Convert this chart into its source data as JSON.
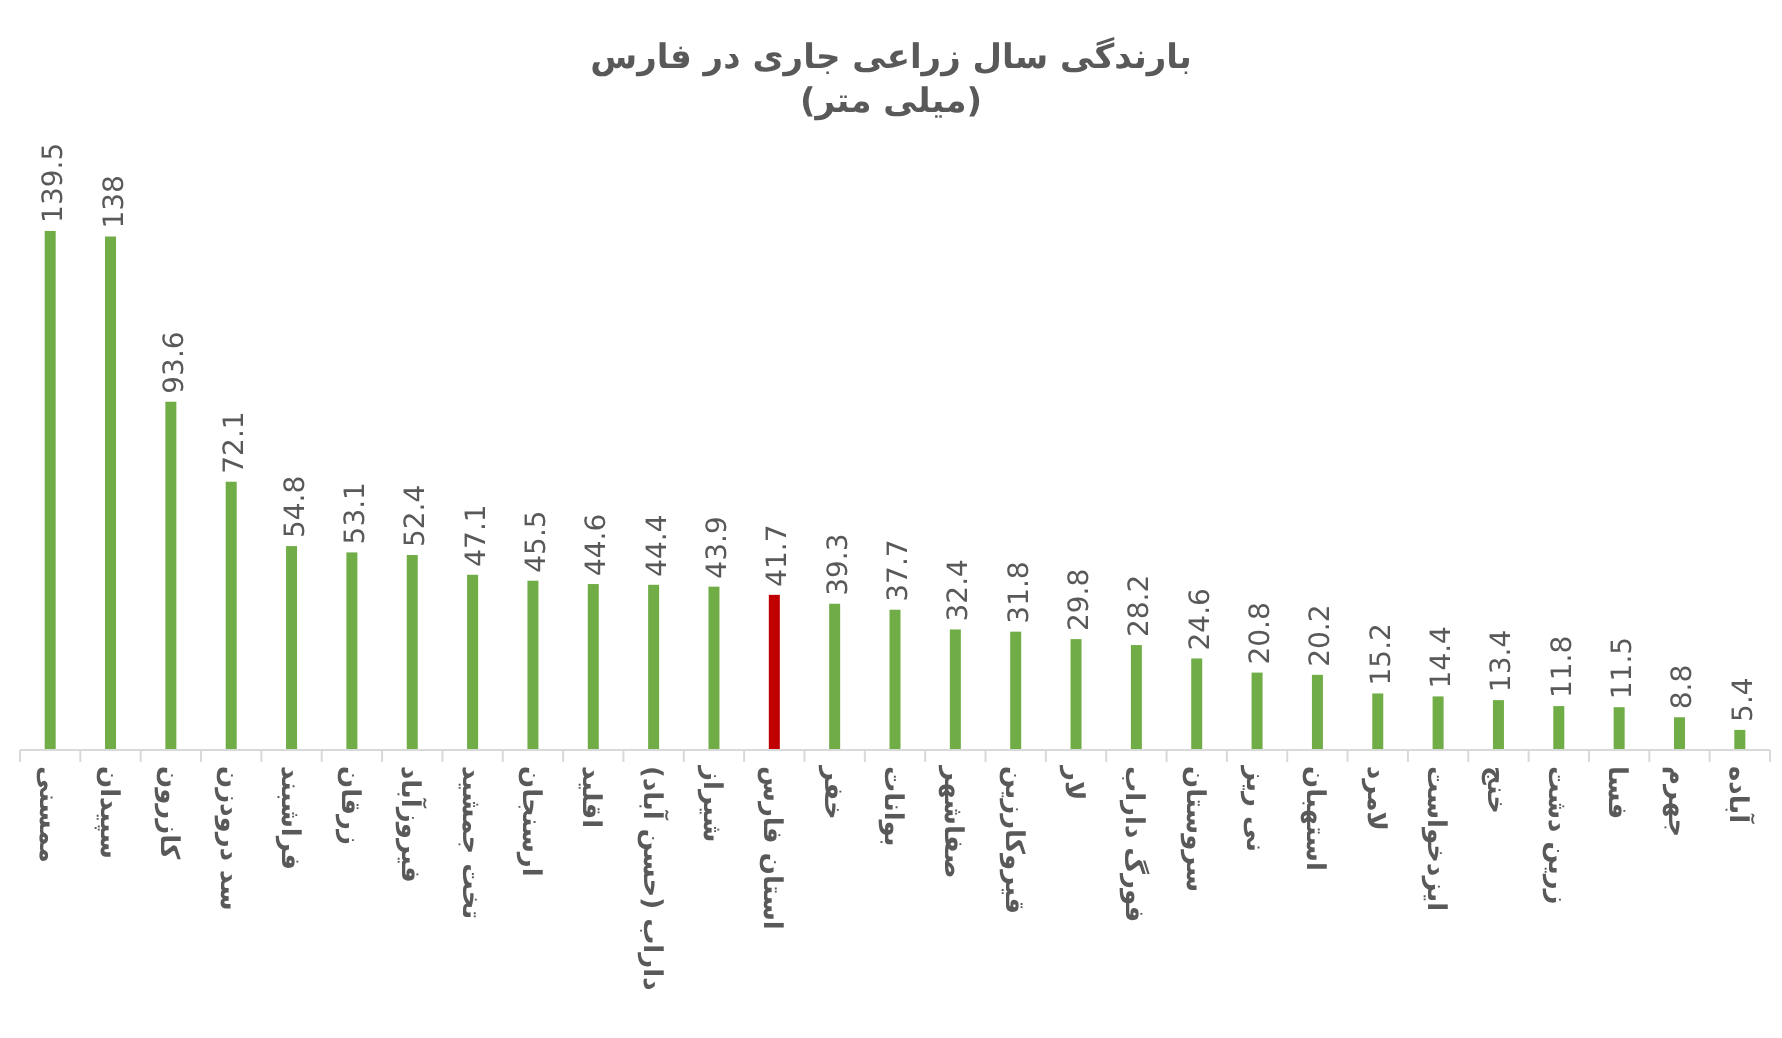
{
  "chart_data": {
    "type": "bar",
    "title": "بارندگی سال زراعی جاری در فارس",
    "subtitle": "(میلی متر)",
    "categories": [
      "ممسنی",
      "سپیدان",
      "کازرون",
      "سد درودزن",
      "فراشبند",
      "زرقان",
      "فیروزآباد",
      "تخت جمشید",
      "ارسنجان",
      "اقلید",
      "داراب (حسن آباد)",
      "شیراز",
      "استان فارس",
      "خفر",
      "بوانات",
      "صفاشهر",
      "قیروکارزین",
      "لار",
      "فورگ داراب",
      "سروستان",
      "نی ریز",
      "استهبان",
      "لامرد",
      "ایزدخواست",
      "خنج",
      "زرین دشت",
      "فسا",
      "جهرم",
      "آباده"
    ],
    "values": [
      139.5,
      138,
      93.6,
      72.1,
      54.8,
      53.1,
      52.4,
      47.1,
      45.5,
      44.6,
      44.4,
      43.9,
      41.7,
      39.3,
      37.7,
      32.4,
      31.8,
      29.8,
      28.2,
      24.6,
      20.8,
      20.2,
      15.2,
      14.4,
      13.4,
      11.8,
      11.5,
      8.8,
      5.4
    ],
    "colors": [
      "#70ad47",
      "#70ad47",
      "#70ad47",
      "#70ad47",
      "#70ad47",
      "#70ad47",
      "#70ad47",
      "#70ad47",
      "#70ad47",
      "#70ad47",
      "#70ad47",
      "#70ad47",
      "#c00000",
      "#70ad47",
      "#70ad47",
      "#70ad47",
      "#70ad47",
      "#70ad47",
      "#70ad47",
      "#70ad47",
      "#70ad47",
      "#70ad47",
      "#70ad47",
      "#70ad47",
      "#70ad47",
      "#70ad47",
      "#70ad47",
      "#70ad47",
      "#70ad47"
    ],
    "data_labels": true,
    "tick_labels": "x",
    "grid": false
  }
}
